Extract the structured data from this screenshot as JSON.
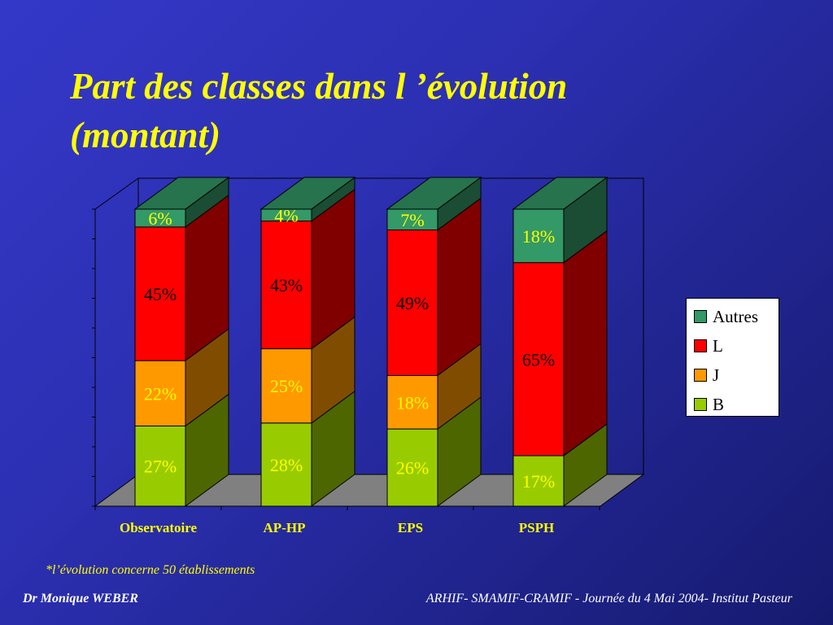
{
  "slide": {
    "title": "Part des classes dans l ’évolution (montant)",
    "footnote": "*l’évolution concerne 50 établissements",
    "author": "Dr Monique WEBER",
    "event": "ARHIF- SMAMIF-CRAMIF - Journée du 4 Mai 2004- Institut Pasteur"
  },
  "colors": {
    "background": "#2b2fb0",
    "text_yellow": "#ffff00",
    "B": "#99cc00",
    "J": "#ff9900",
    "L": "#ff0000",
    "Autres": "#339966"
  },
  "chart_data": {
    "type": "bar",
    "stacked": true,
    "three_d": true,
    "categories": [
      "Observatoire",
      "AP-HP",
      "EPS",
      "PSPH"
    ],
    "series": [
      {
        "name": "B",
        "values": [
          27,
          28,
          26,
          17
        ],
        "labels": [
          "27%",
          "28%",
          "26%",
          "17%"
        ]
      },
      {
        "name": "J",
        "values": [
          22,
          25,
          18,
          0
        ],
        "labels": [
          "22%",
          "25%",
          "18%",
          ""
        ]
      },
      {
        "name": "L",
        "values": [
          45,
          43,
          49,
          65
        ],
        "labels": [
          "45%",
          "43%",
          "49%",
          "65%"
        ]
      },
      {
        "name": "Autres",
        "values": [
          6,
          4,
          7,
          18
        ],
        "labels": [
          "6%",
          "4%",
          "7%",
          "18%"
        ]
      }
    ],
    "ylim": [
      0,
      100
    ],
    "legend": {
      "position": "right",
      "entries": [
        "Autres",
        "L",
        "J",
        "B"
      ]
    },
    "grid": false
  }
}
